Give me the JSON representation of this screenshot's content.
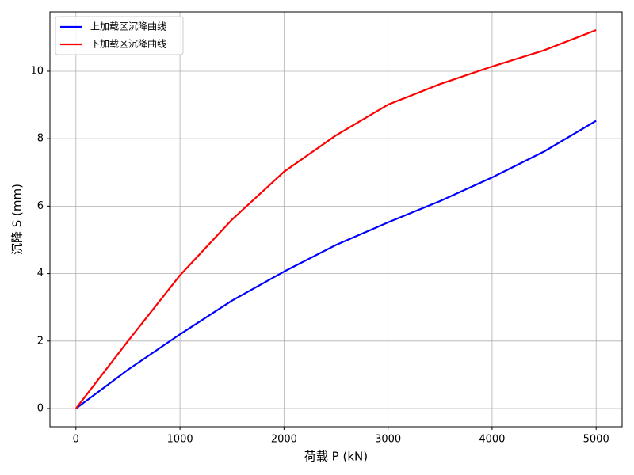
{
  "chart_data": {
    "type": "line",
    "xlabel": "荷载 P (kN)",
    "ylabel": "沉降 S (mm)",
    "x": [
      0,
      500,
      1000,
      1500,
      2000,
      2500,
      3000,
      3500,
      4000,
      4500,
      5000
    ],
    "series": [
      {
        "name": "上加载区沉降曲线",
        "color": "#0000ff",
        "values": [
          0,
          1.15,
          2.2,
          3.2,
          4.06,
          4.85,
          5.52,
          6.15,
          6.85,
          7.62,
          8.53
        ]
      },
      {
        "name": "下加载区沉降曲线",
        "color": "#ff0000",
        "values": [
          0,
          2.0,
          3.95,
          5.6,
          7.02,
          8.1,
          9.01,
          9.62,
          10.14,
          10.62,
          11.22
        ]
      }
    ],
    "xlim": [
      -250,
      5250
    ],
    "ylim": [
      -0.54,
      11.76
    ],
    "xticks": [
      0,
      1000,
      2000,
      3000,
      4000,
      5000
    ],
    "yticks": [
      0,
      2,
      4,
      6,
      8,
      10
    ],
    "grid": true,
    "legend": "upper-left"
  }
}
